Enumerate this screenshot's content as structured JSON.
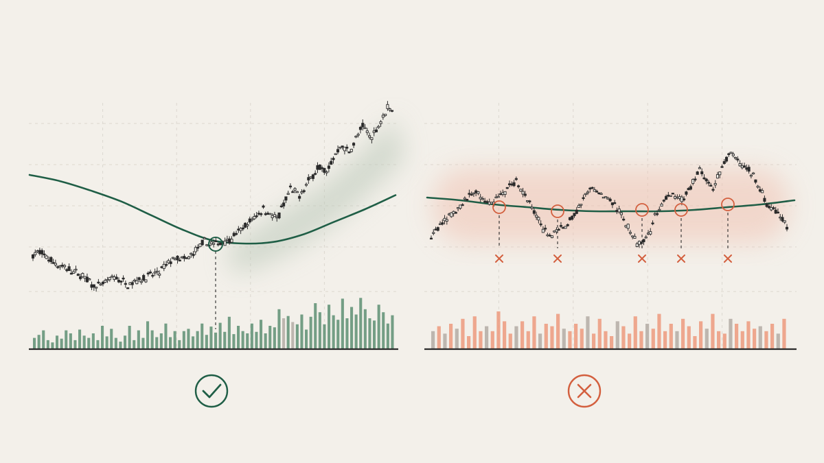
{
  "colors": {
    "background": "#f3f0ea",
    "grid": "#dcd7cf",
    "candle": "#2b2b2b",
    "good": "#1f5e46",
    "good_volume": "#5d8f73",
    "good_glow": "#b9c7b8",
    "bad": "#d35f3e",
    "bad_volume": "#ec9a7e",
    "neutral_volume": "#b3aca4",
    "bad_glow": "#f0c3b3",
    "axis": "#2b2b2b"
  },
  "icons": {
    "left": "check-circle-icon",
    "right": "x-circle-icon",
    "marker": "x-mark-icon"
  },
  "chart_data": [
    {
      "type": "candlestick",
      "panel": "left",
      "title": "",
      "xlabel": "",
      "ylabel": "",
      "grid": true,
      "price_range": [
        0,
        100
      ],
      "moving_average": [
        82,
        78,
        72,
        65,
        56,
        47,
        40,
        38,
        39,
        44,
        52,
        60,
        69
      ],
      "price_anchors": [
        [
          0,
          66
        ],
        [
          3,
          70
        ],
        [
          10,
          52
        ],
        [
          22,
          32
        ],
        [
          28,
          14
        ],
        [
          36,
          30
        ],
        [
          42,
          20
        ],
        [
          48,
          28
        ],
        [
          56,
          38
        ],
        [
          62,
          60
        ],
        [
          68,
          58
        ],
        [
          76,
          86
        ],
        [
          80,
          82
        ],
        [
          88,
          92
        ],
        [
          96,
          118
        ],
        [
          102,
          140
        ],
        [
          108,
          122
        ],
        [
          114,
          170
        ],
        [
          118,
          160
        ],
        [
          126,
          205
        ],
        [
          130,
          198
        ],
        [
          136,
          240
        ],
        [
          140,
          230
        ],
        [
          146,
          270
        ],
        [
          150,
          252
        ],
        [
          157,
          300
        ],
        [
          159,
          298
        ]
      ],
      "volume": [
        14,
        18,
        24,
        11,
        8,
        17,
        13,
        24,
        20,
        11,
        25,
        17,
        14,
        20,
        11,
        30,
        16,
        26,
        14,
        9,
        17,
        30,
        11,
        24,
        14,
        36,
        24,
        15,
        20,
        33,
        15,
        23,
        11,
        23,
        26,
        16,
        23,
        33,
        18,
        29,
        21,
        34,
        22,
        42,
        19,
        30,
        23,
        20,
        33,
        22,
        38,
        20,
        30,
        28,
        52,
        40,
        43,
        35,
        32,
        45,
        25,
        42,
        60,
        48,
        32,
        58,
        44,
        38,
        66,
        40,
        55,
        45,
        67,
        52,
        40,
        37,
        58,
        48,
        33,
        44
      ],
      "volume_neutral_indices": [
        55,
        57
      ]
    },
    {
      "type": "candlestick",
      "panel": "right",
      "title": "",
      "xlabel": "",
      "ylabel": "",
      "grid": true,
      "price_range": [
        0,
        100
      ],
      "moving_average": [
        24,
        22,
        19,
        17,
        15,
        14,
        14,
        14,
        15,
        17,
        19,
        22
      ],
      "price_anchors": [
        [
          0,
          10
        ],
        [
          4,
          25
        ],
        [
          20,
          65
        ],
        [
          26,
          48
        ],
        [
          38,
          78
        ],
        [
          52,
          10
        ],
        [
          60,
          22
        ],
        [
          72,
          70
        ],
        [
          82,
          50
        ],
        [
          92,
          0
        ],
        [
          98,
          14
        ],
        [
          100,
          38
        ],
        [
          106,
          60
        ],
        [
          112,
          55
        ],
        [
          120,
          90
        ],
        [
          126,
          70
        ],
        [
          134,
          115
        ],
        [
          138,
          100
        ],
        [
          144,
          85
        ],
        [
          150,
          50
        ],
        [
          156,
          38
        ],
        [
          159,
          22
        ]
      ],
      "volume": [
        14,
        18,
        12,
        20,
        16,
        24,
        10,
        26,
        14,
        18,
        14,
        30,
        22,
        12,
        18,
        22,
        14,
        26,
        12,
        20,
        18,
        28,
        16,
        14,
        20,
        16,
        26,
        12,
        24,
        14,
        10,
        22,
        18,
        12,
        26,
        14,
        20,
        16,
        28,
        14,
        20,
        14,
        24,
        18,
        10,
        22,
        16,
        28,
        14,
        12,
        24,
        20,
        14,
        22,
        16,
        18,
        14,
        20,
        12,
        24
      ],
      "volume_neutral_indices": [
        0,
        2,
        4,
        9,
        14,
        18,
        22,
        26,
        31,
        36,
        41,
        46,
        50,
        55,
        58
      ],
      "failed_cross_markers": 5
    }
  ]
}
